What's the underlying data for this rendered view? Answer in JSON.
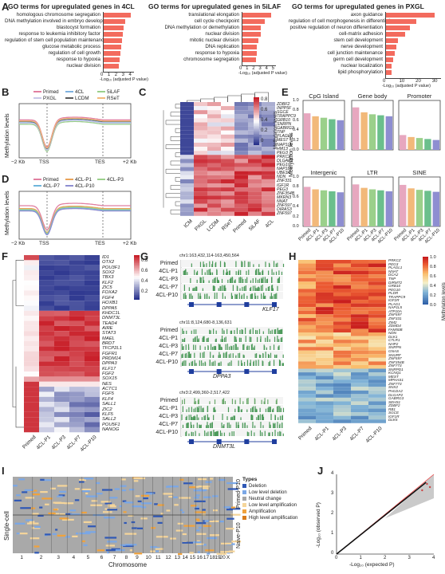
{
  "panels": {
    "A": {
      "letter": "A",
      "charts": [
        {
          "title": "GO terms for upregulated genes in 4CL",
          "terms": [
            "homologous chromosome segregation",
            "DNA methylation involved in embryo development",
            "blastocyst formation",
            "response to leukemia inhibitory factor",
            "regulation of stem cell population maintenance",
            "glucose metabolic process",
            "regulation of cell growth",
            "response to hypoxia",
            "nuclear division"
          ],
          "values": [
            3.9,
            3.2,
            2.9,
            2.8,
            2.7,
            2.6,
            2.5,
            2.4,
            2.3
          ],
          "ticks": [
            "0",
            "1",
            "2",
            "3",
            "4"
          ],
          "xmax": 4.4,
          "xlabel": "-Log₁₀ (adjusted P value)"
        },
        {
          "title": "GO terms for upregulated genes in 5iLAF",
          "terms": [
            "translational elongation",
            "cell cycle checkpoint",
            "DNA methylation or demethylation",
            "nuclear division",
            "mitotic nuclear division",
            "DNA replication",
            "response to hypoxia",
            "chromosome segregation"
          ],
          "values": [
            4.6,
            3.6,
            3.0,
            2.9,
            2.6,
            2.4,
            2.3,
            2.2
          ],
          "ticks": [
            "0",
            "1",
            "2",
            "3",
            "4",
            "5"
          ],
          "xmax": 5.3,
          "xlabel": "-Log₁₀ (adjusted P value)"
        },
        {
          "title": "GO terms for upregulated genes in PXGL",
          "terms": [
            "axon guidance",
            "regulation of cell morphogenesis in differentiation",
            "positive regulation of neuron differentiation",
            "cell-matrix adhesion",
            "stem cell development",
            "nerve development",
            "cell junction maintenance",
            "germ cell development",
            "nuclear localization",
            "lipid phosphorylation"
          ],
          "values": [
            30,
            19,
            15,
            12,
            8,
            7,
            6,
            5,
            4,
            4
          ],
          "ticks": [
            "0",
            "10",
            "20",
            "30"
          ],
          "xmax": 34,
          "xlabel": "-Log₁₀ (adjusted P value)"
        }
      ]
    },
    "B": {
      "letter": "B",
      "ylabel": "Methylation levels",
      "legend": [
        "Primed",
        "4CL",
        "5iLAF",
        "PXGL",
        "LCDM",
        "RSeT"
      ],
      "colors": [
        "#e17fa0",
        "#7fb2e0",
        "#9bd08b",
        "#c9c7e8",
        "#5a5a5a",
        "#f2b97a"
      ],
      "xticks": [
        "−2 Kb",
        "TSS",
        "TES",
        "+2 Kb"
      ]
    },
    "C": {
      "letter": "C",
      "columns": [
        "ICM",
        "PXGL",
        "LCDM",
        "RSeT",
        "Primed",
        "5iLAF",
        "4CL"
      ],
      "genes": [
        "ZDBF2",
        "INPP5F",
        "SGCE",
        "TRAPPC9",
        "GRB10",
        "SNRPN",
        "GABRG3",
        "TNP",
        "PLAGL1",
        "MEST",
        "NAP1L5",
        "HM13",
        "PEG3",
        "PRKCZ",
        "DLGAP2",
        "PEG10",
        "NAP1L5",
        "UBE3A",
        "NDN",
        "ZNF331",
        "IGF1R",
        "PEG3",
        "ZNF354B",
        "MKRN3",
        "NNAT",
        "ZNF597",
        "DIRAS3",
        "ZNF597"
      ],
      "legend_title": "Methylation levels",
      "legend_ticks": [
        "0.8",
        "0.6",
        "0.4",
        "0.2",
        "0"
      ]
    },
    "D": {
      "letter": "D",
      "ylabel": "Methylation levels",
      "legend": [
        "Primed",
        "4CL-P1",
        "4CL-P3",
        "4CL-P7",
        "4CL-P10"
      ],
      "colors": [
        "#e17fa0",
        "#e9a35a",
        "#9bd08b",
        "#6fb5dc",
        "#8e8ed1"
      ],
      "xticks": [
        "−2 Kb",
        "TSS",
        "TES",
        "+2 Kb"
      ]
    },
    "E": {
      "letter": "E",
      "ylabel": "Methylation levels",
      "subplots": [
        {
          "title": "CpG Island",
          "values": [
            0.74,
            0.68,
            0.65,
            0.62,
            0.6
          ]
        },
        {
          "title": "Gene body",
          "values": [
            0.86,
            0.76,
            0.72,
            0.7,
            0.68
          ]
        },
        {
          "title": "Promoter",
          "values": [
            0.3,
            0.26,
            0.24,
            0.22,
            0.2
          ]
        },
        {
          "title": "Intergenic",
          "values": [
            0.8,
            0.75,
            0.73,
            0.71,
            0.69
          ]
        },
        {
          "title": "LTR",
          "values": [
            0.85,
            0.78,
            0.75,
            0.73,
            0.71
          ]
        },
        {
          "title": "SINE",
          "values": [
            0.84,
            0.77,
            0.74,
            0.72,
            0.7
          ]
        }
      ],
      "categories": [
        "Primed",
        "4CL-P1",
        "4CL-P3",
        "4CL-P7",
        "4CL-P10"
      ],
      "colors": [
        "#e7a7bf",
        "#f2b97a",
        "#9bd08b",
        "#6bbf8c",
        "#8e8ed1"
      ],
      "yticks": [
        "0.0",
        "0.2",
        "0.4",
        "0.6",
        "0.8",
        "1.0"
      ]
    },
    "F": {
      "letter": "F",
      "columns": [
        "Primed",
        "4CL-P1",
        "4CL-P3",
        "4CL-P7",
        "4CL-P10"
      ],
      "genes": [
        "ID1",
        "OTX2",
        "POU3F1",
        "SOX2",
        "TBX3",
        "KLF2",
        "ZIC5",
        "FOXA2",
        "FGF4",
        "HOXB1",
        "DPPA5",
        "KHDC1L",
        "DNMT3L",
        "TEAD4",
        "AIRE",
        "STAT3",
        "MAEL",
        "BRDT",
        "TFCP2L1",
        "FGFR1",
        "PRDM14",
        "DPPA3",
        "KLF17",
        "FGF2",
        "SOX15",
        "NES",
        "ACTC1",
        "FGF5",
        "KLF4",
        "SALL1",
        "ZIC2",
        "KLF5",
        "SALL2",
        "POU5F1",
        "NANOG"
      ],
      "legend_ticks": [
        "0.8",
        "0.6",
        "0.4",
        "0.2"
      ]
    },
    "G": {
      "letter": "G",
      "tracks": [
        {
          "region": "chr1:163,432,114-163,450,564",
          "gene": "KLF17"
        },
        {
          "region": "chr11:8,124,680-8,136,631",
          "gene": "DPPA3"
        },
        {
          "region": "chr3:2,499,360-2,517,422",
          "gene": "DNMT3L"
        }
      ],
      "rows": [
        "Primed",
        "4CL-P1",
        "4CL-P3",
        "4CL-P7",
        "4CL-P10"
      ]
    },
    "H": {
      "letter": "H",
      "columns": [
        "Primed",
        "4CL-P1",
        "4CL-P3",
        "4CL-P7",
        "4CL-P10"
      ],
      "genes": [
        "PRKCZ",
        "PEG3",
        "PLAGL1",
        "NNAT",
        "DCA2",
        "TNP",
        "DIRMT2",
        "GRB10",
        "PEG10",
        "PLDR",
        "TRAPPC9",
        "IGF2R",
        "PLAG1",
        "NAP1L5",
        "ATP10A",
        "ZNF597",
        "ZNF331",
        "ZIM2",
        "ZDMD4",
        "FAM50B",
        "NDN",
        "DLK1",
        "CTLR1",
        "NHP2",
        "SNRPN",
        "GNAS",
        "SNURF",
        "ZNF597",
        "ZNF354B",
        "ZNF773",
        "SNRPD1",
        "KCNQ1",
        "MEST",
        "MPHAS1",
        "ZNF773",
        "SNX2",
        "PHLDA2",
        "DLGAP2",
        "GABRG3",
        "SEHS1",
        "ZDBF2",
        "RB1",
        "SGCE",
        "IGF1R",
        "DLK5"
      ],
      "legend_title": "Methylation levels",
      "legend_ticks": [
        "1.0",
        "0.8",
        "0.6",
        "0.4",
        "0.2",
        "0.0"
      ]
    },
    "I": {
      "letter": "I",
      "ylabel": "Single-cell",
      "xlabel": "Chromosome",
      "row_labels": [
        "Primed-P10",
        "Naive-P10"
      ],
      "chromosomes": [
        "1",
        "2",
        "3",
        "4",
        "5",
        "6",
        "7",
        "8",
        "9",
        "10",
        "11",
        "12",
        "13",
        "14",
        "15",
        "16",
        "17",
        "18",
        "19",
        "20",
        "X"
      ],
      "legend_title": "Types",
      "types": [
        "Deletion",
        "Low level deletion",
        "Neutral change",
        "Low level amplification",
        "Amplification",
        "High level amplification"
      ],
      "type_colors": [
        "#2f58b6",
        "#7aa7e6",
        "#a6a6a6",
        "#f5d59a",
        "#f0a23c",
        "#d97c1a"
      ]
    },
    "J": {
      "letter": "J",
      "ylabel": "-Log₁₀ (observed P)",
      "xlabel": "-Log₁₀ (expected P)",
      "ticks": [
        "0",
        "1",
        "2",
        "3",
        "4"
      ]
    }
  }
}
